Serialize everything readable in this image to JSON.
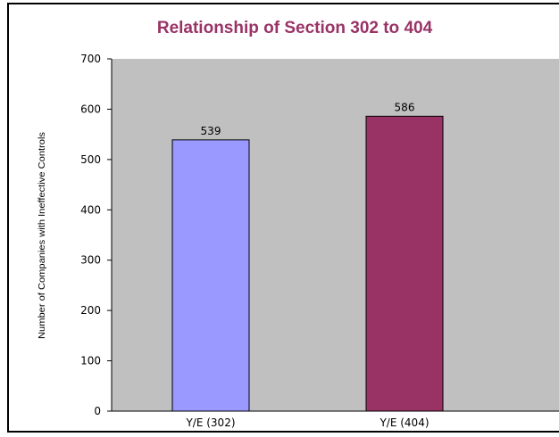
{
  "chart_data": {
    "type": "bar",
    "title": "Relationship of Section 302 to 404",
    "xlabel": "",
    "ylabel": "Number of Companies with Ineffective Controls",
    "categories": [
      "Y/E (302)",
      "Y/E (404)"
    ],
    "values": [
      539,
      586
    ],
    "ylim": [
      0,
      700
    ],
    "yticks": [
      0,
      100,
      200,
      300,
      400,
      500,
      600,
      700
    ],
    "grid": false,
    "legend": "none",
    "colors": {
      "title": "#993366",
      "plot_background": "#c0c0c0",
      "bars": [
        "#9999ff",
        "#993366"
      ]
    }
  }
}
